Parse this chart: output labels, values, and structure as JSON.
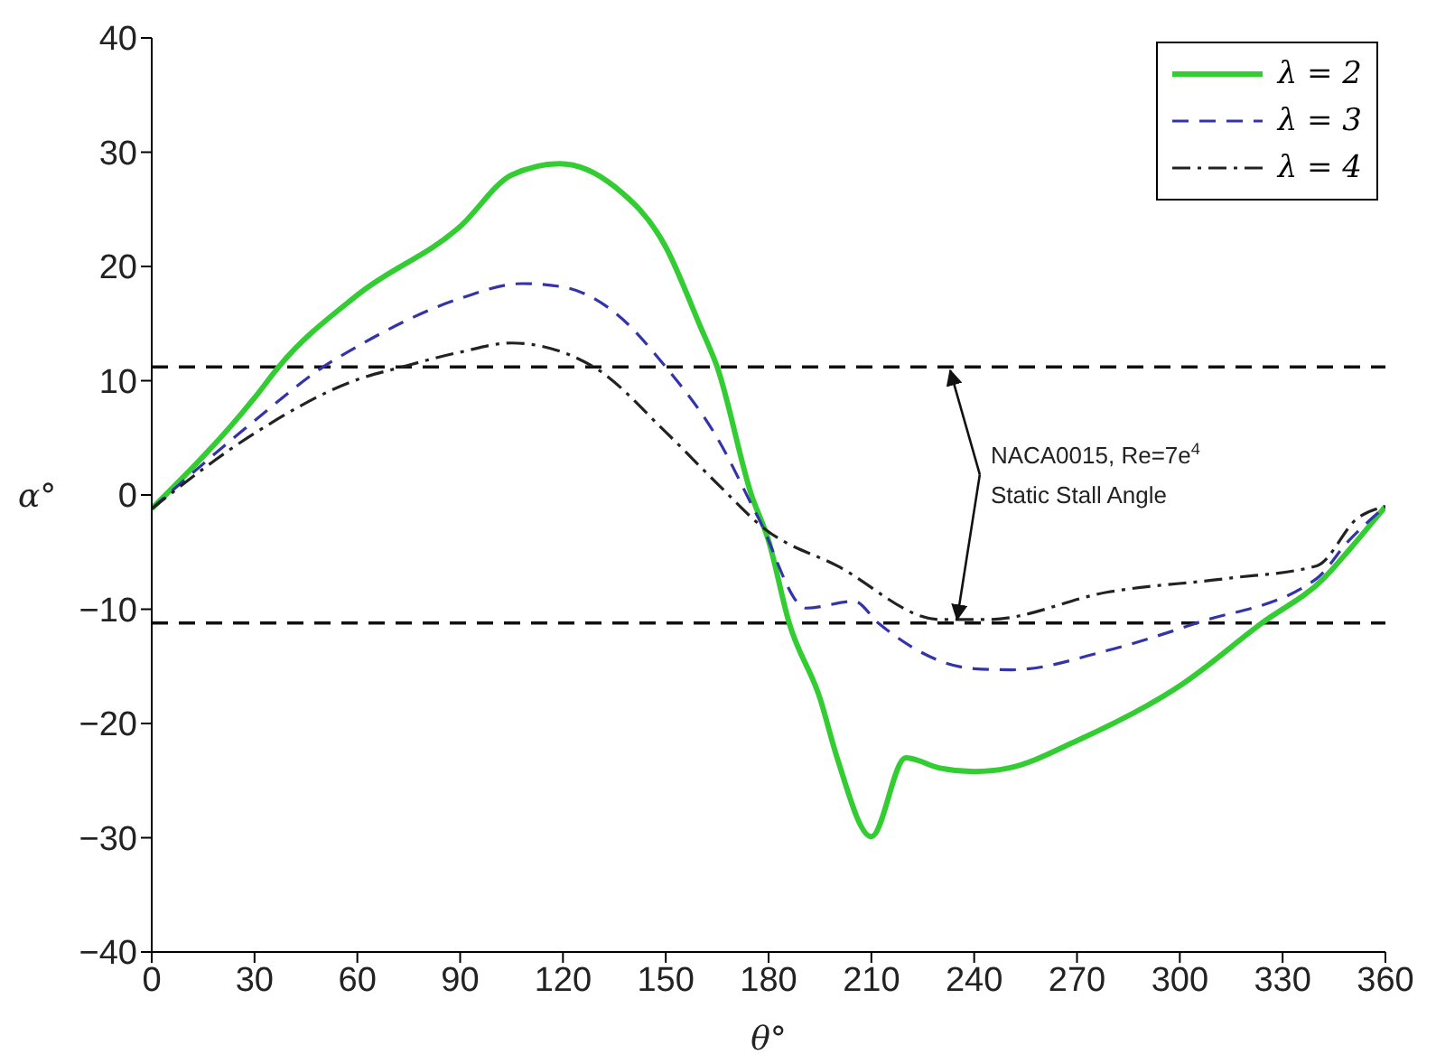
{
  "chart_data": {
    "type": "line",
    "xlabel": "θ°",
    "ylabel": "α°",
    "xlim": [
      0,
      360
    ],
    "xticks": [
      0,
      30,
      60,
      90,
      120,
      150,
      180,
      210,
      240,
      270,
      300,
      330,
      360
    ],
    "ylim": [
      -40,
      40
    ],
    "yticks": [
      -40,
      -30,
      -20,
      -10,
      0,
      10,
      20,
      30,
      40
    ],
    "legend": "top right",
    "marker": "none",
    "series": [
      {
        "name": "λ = 2",
        "color": "#33cc33",
        "line_style": "solid",
        "x": [
          0,
          30,
          37,
          60,
          90,
          105,
          119,
          135,
          150,
          160,
          165,
          175,
          180,
          186,
          195,
          200,
          210,
          220,
          230,
          240,
          250,
          270,
          300,
          324,
          342,
          350,
          360
        ],
        "values": [
          -1.2,
          8.5,
          11.2,
          17.5,
          23.5,
          28,
          29,
          27,
          21.7,
          14.8,
          11.2,
          0,
          -4,
          -11.2,
          -17.8,
          -23,
          -29.9,
          -23,
          -23.9,
          -24.2,
          -23.9,
          -21.5,
          -16.7,
          -11.2,
          -7.3,
          -4.6,
          -1
        ]
      },
      {
        "name": "λ = 3",
        "color": "#3333aa",
        "line_style": "dashed",
        "x": [
          0,
          30,
          50,
          60,
          90,
          108,
          120,
          135,
          150,
          165,
          177,
          191,
          205,
          212,
          240,
          251,
          279,
          305,
          340,
          349,
          360
        ],
        "values": [
          -1.2,
          6.5,
          11.2,
          13,
          17.2,
          18.5,
          18.2,
          16,
          11.2,
          5,
          -2,
          -9.9,
          -9.3,
          -11.2,
          -15.2,
          -15.3,
          -13.6,
          -11.2,
          -7.3,
          -4.1,
          -1
        ]
      },
      {
        "name": "λ = 4",
        "color": "#222222",
        "line_style": "dashdot",
        "x": [
          0,
          30,
          60,
          73,
          90,
          105,
          129,
          150,
          165,
          179,
          200,
          230,
          244,
          279,
          314,
          340,
          352,
          360
        ],
        "values": [
          -1.2,
          5.4,
          10.1,
          11.2,
          12.5,
          13.3,
          11.2,
          5.5,
          1,
          -3,
          -6.2,
          -10.9,
          -10.9,
          -8.5,
          -7.3,
          -6.2,
          -2,
          -1
        ]
      }
    ],
    "ref_lines": [
      {
        "axis": "y",
        "value": 11.2,
        "color": "#111111",
        "line_style": "dashed"
      },
      {
        "axis": "y",
        "value": -11.2,
        "color": "#111111",
        "line_style": "dashed"
      }
    ],
    "annotations": [
      {
        "text": "NACA0015, Re=7e$^{4}$",
        "x": 233,
        "y": 11.2
      },
      {
        "text": "Static Stall Angle",
        "x": 235,
        "y": -11.2
      }
    ]
  }
}
